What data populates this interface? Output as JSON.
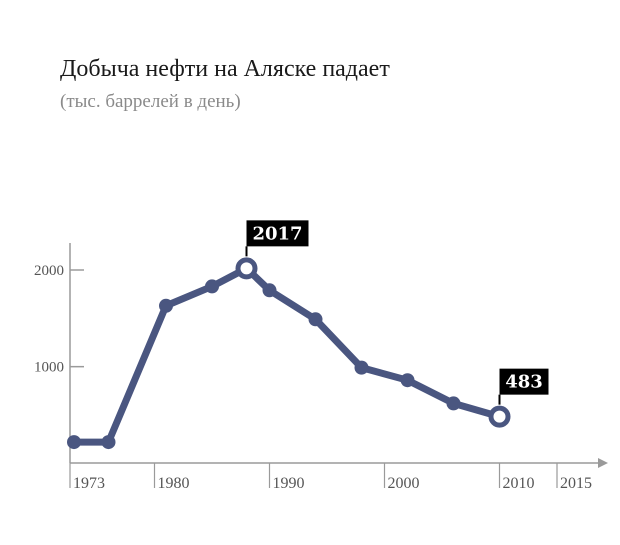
{
  "chart_data": {
    "type": "line",
    "title": "Добыча нефти на Аляске падает",
    "subtitle": "(тыс. баррелей в день)",
    "xlabel": "",
    "ylabel": "",
    "x_ticks": [
      "1973",
      "1980",
      "1990",
      "2000",
      "2010",
      "2015"
    ],
    "y_ticks": [
      "1000",
      "2000"
    ],
    "ylim": [
      0,
      2300
    ],
    "xlim": [
      1973,
      2015
    ],
    "grid": false,
    "series": [
      {
        "color": "#4a5680",
        "x": [
          1973,
          1976,
          1981,
          1985,
          1988,
          1990,
          1994,
          1998,
          2002,
          2006,
          2010
        ],
        "values": [
          220,
          220,
          1630,
          1830,
          2017,
          1790,
          1490,
          990,
          860,
          620,
          483
        ]
      }
    ],
    "annotations": [
      {
        "x": 1988,
        "value": 2017,
        "label": "2017"
      },
      {
        "x": 2010,
        "value": 483,
        "label": "483"
      }
    ]
  }
}
